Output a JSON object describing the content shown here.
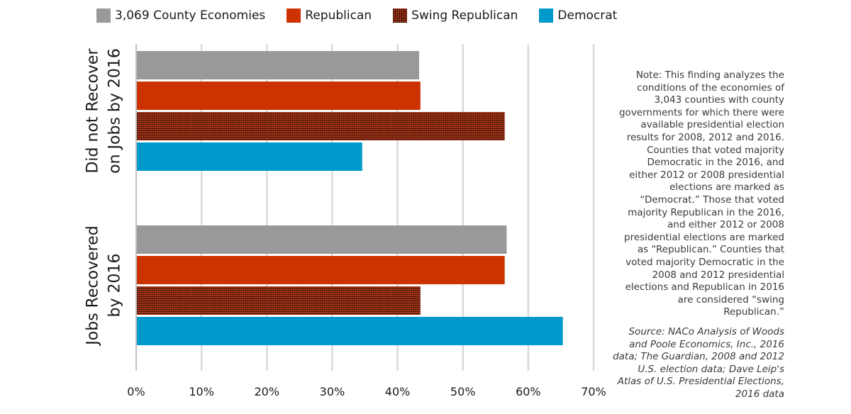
{
  "chart_data": {
    "type": "bar",
    "orientation": "horizontal",
    "categories": [
      "Did not Recover on Jobs by 2016",
      "Jobs Recovered by 2016"
    ],
    "category_lines": [
      [
        "Did not Recover",
        "on Jobs by 2016"
      ],
      [
        "Jobs Recovered",
        "by 2016"
      ]
    ],
    "series": [
      {
        "name": "3,069 County Economies",
        "color": "#999999",
        "pattern": false,
        "values": [
          43.3,
          56.7
        ]
      },
      {
        "name": "Republican",
        "color": "#cc3300",
        "pattern": false,
        "values": [
          43.5,
          56.4
        ]
      },
      {
        "name": "Swing Republican",
        "color": "#b83a1c",
        "pattern": true,
        "values": [
          56.4,
          43.5
        ]
      },
      {
        "name": "Democrat",
        "color": "#0099cc",
        "pattern": false,
        "values": [
          34.6,
          65.3
        ]
      }
    ],
    "xlim": [
      0,
      70
    ],
    "xticks": [
      0,
      10,
      20,
      30,
      40,
      50,
      60,
      70
    ],
    "xtick_labels": [
      "0%",
      "10%",
      "20%",
      "30%",
      "40%",
      "50%",
      "60%",
      "70%"
    ],
    "grid": true,
    "legend_position": "top"
  },
  "note": "Note: This finding analyzes the conditions of the economies of 3,043 counties with county governments for which there were available presidential election results for 2008, 2012 and 2016. Counties that voted majority Democratic in the 2016, and either 2012 or 2008 presidential elections are marked as “Democrat.” Those that voted majority Republican in the 2016, and either 2012 or 2008 presidential elections are marked as “Republican.” Counties that voted majority Democratic in the 2008 and 2012 presidential elections and Republican in 2016 are considered “swing Republican.”",
  "source": "Source: NACo Analysis of Woods and Poole Economics, Inc., 2016 data; The Guardian, 2008 and 2012 U.S. election data; Dave Leip's Atlas of U.S. Presidential Elections, 2016 data"
}
